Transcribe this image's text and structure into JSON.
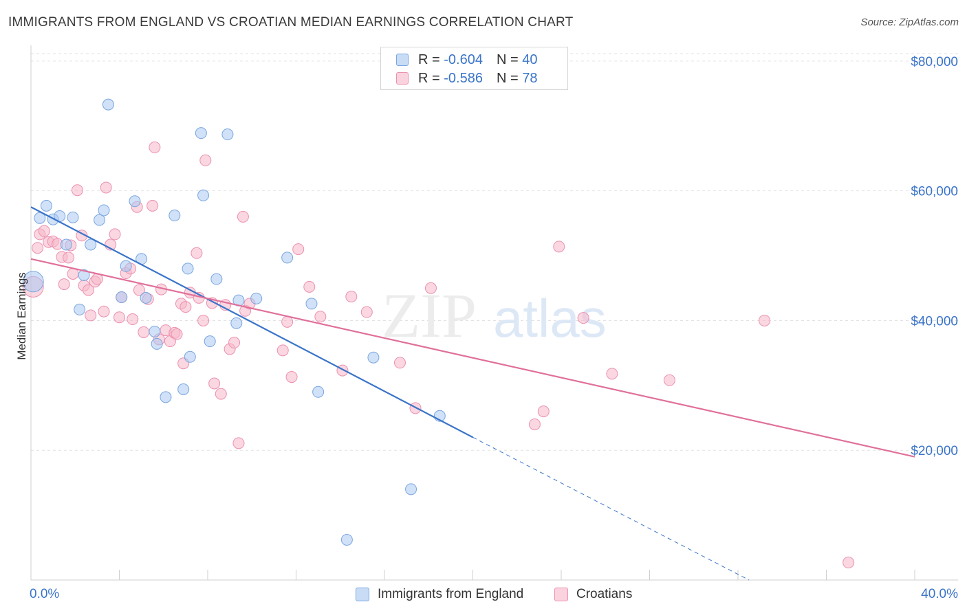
{
  "header": {
    "title": "IMMIGRANTS FROM ENGLAND VS CROATIAN MEDIAN EARNINGS CORRELATION CHART",
    "source": "Source: ZipAtlas.com"
  },
  "watermark": "ZIPatlas",
  "legend": {
    "rows": [
      {
        "r_label": "R = ",
        "r_value": "-0.604",
        "n_label": "N = ",
        "n_value": "40",
        "color": "#a9c8f2"
      },
      {
        "r_label": "R = ",
        "r_value": "-0.586",
        "n_label": "N = ",
        "n_value": "78",
        "color": "#f6b6c9"
      }
    ]
  },
  "bottom_legend": {
    "items": [
      {
        "label": "Immigrants from England",
        "color": "#a9c8f2"
      },
      {
        "label": "Croatians",
        "color": "#f6b6c9"
      }
    ]
  },
  "chart_data": {
    "type": "scatter",
    "title": "IMMIGRANTS FROM ENGLAND VS CROATIAN MEDIAN EARNINGS CORRELATION CHART",
    "xlabel": "",
    "ylabel": "Median Earnings",
    "xlim": [
      0,
      40
    ],
    "ylim": [
      0,
      82000
    ],
    "x_tick_labels": [
      "0.0%",
      "40.0%"
    ],
    "y_tick_labels": [
      "$20,000",
      "$40,000",
      "$60,000",
      "$80,000"
    ],
    "y_ticks": [
      20000,
      40000,
      60000,
      80000
    ],
    "grid": true,
    "legend_position": "top-center",
    "colors": {
      "england": "#3a74c9",
      "croatians": "#e0709a",
      "england_fill": "#a9c8f2",
      "croatians_fill": "#f6b6c9"
    },
    "series": [
      {
        "name": "Immigrants from England",
        "r": -0.604,
        "n": 40,
        "trend": {
          "x": [
            0,
            20
          ],
          "y": [
            57500,
            22000
          ],
          "dashed_to": {
            "x": 32.5,
            "y": 0
          }
        },
        "points": [
          {
            "x": 0.1,
            "y": 46000
          },
          {
            "x": 0.4,
            "y": 55800
          },
          {
            "x": 0.7,
            "y": 57700
          },
          {
            "x": 1.0,
            "y": 55600
          },
          {
            "x": 1.3,
            "y": 56100
          },
          {
            "x": 1.6,
            "y": 51700
          },
          {
            "x": 1.9,
            "y": 55900
          },
          {
            "x": 2.2,
            "y": 41700
          },
          {
            "x": 2.4,
            "y": 47000
          },
          {
            "x": 2.7,
            "y": 51700
          },
          {
            "x": 3.1,
            "y": 55500
          },
          {
            "x": 3.3,
            "y": 57000
          },
          {
            "x": 3.5,
            "y": 73300
          },
          {
            "x": 4.1,
            "y": 43600
          },
          {
            "x": 4.3,
            "y": 48400
          },
          {
            "x": 4.7,
            "y": 58400
          },
          {
            "x": 5.0,
            "y": 49500
          },
          {
            "x": 5.2,
            "y": 43500
          },
          {
            "x": 5.6,
            "y": 38300
          },
          {
            "x": 5.7,
            "y": 36400
          },
          {
            "x": 6.1,
            "y": 28200
          },
          {
            "x": 6.5,
            "y": 56200
          },
          {
            "x": 6.9,
            "y": 29400
          },
          {
            "x": 7.1,
            "y": 48000
          },
          {
            "x": 7.2,
            "y": 34400
          },
          {
            "x": 7.7,
            "y": 68900
          },
          {
            "x": 7.8,
            "y": 59300
          },
          {
            "x": 8.1,
            "y": 36800
          },
          {
            "x": 8.4,
            "y": 46400
          },
          {
            "x": 8.9,
            "y": 68700
          },
          {
            "x": 9.3,
            "y": 39600
          },
          {
            "x": 9.4,
            "y": 43100
          },
          {
            "x": 10.2,
            "y": 43400
          },
          {
            "x": 11.6,
            "y": 49700
          },
          {
            "x": 12.7,
            "y": 42600
          },
          {
            "x": 13.0,
            "y": 29000
          },
          {
            "x": 14.3,
            "y": 6200
          },
          {
            "x": 15.5,
            "y": 34300
          },
          {
            "x": 17.2,
            "y": 14000
          },
          {
            "x": 18.5,
            "y": 25300
          }
        ]
      },
      {
        "name": "Croatians",
        "r": -0.586,
        "n": 78,
        "trend": {
          "x": [
            0,
            40
          ],
          "y": [
            49500,
            19000
          ]
        },
        "points": [
          {
            "x": 0.1,
            "y": 45200
          },
          {
            "x": 0.3,
            "y": 51200
          },
          {
            "x": 0.4,
            "y": 53300
          },
          {
            "x": 0.6,
            "y": 53800
          },
          {
            "x": 0.8,
            "y": 52100
          },
          {
            "x": 1.0,
            "y": 52200
          },
          {
            "x": 1.2,
            "y": 51800
          },
          {
            "x": 1.4,
            "y": 49800
          },
          {
            "x": 1.5,
            "y": 45600
          },
          {
            "x": 1.7,
            "y": 49700
          },
          {
            "x": 1.8,
            "y": 51600
          },
          {
            "x": 1.9,
            "y": 47200
          },
          {
            "x": 2.1,
            "y": 60100
          },
          {
            "x": 2.3,
            "y": 53100
          },
          {
            "x": 2.4,
            "y": 45400
          },
          {
            "x": 2.6,
            "y": 44700
          },
          {
            "x": 2.7,
            "y": 40800
          },
          {
            "x": 2.9,
            "y": 46000
          },
          {
            "x": 3.0,
            "y": 46400
          },
          {
            "x": 3.3,
            "y": 41400
          },
          {
            "x": 3.4,
            "y": 60500
          },
          {
            "x": 3.6,
            "y": 51700
          },
          {
            "x": 3.8,
            "y": 53300
          },
          {
            "x": 4.0,
            "y": 40500
          },
          {
            "x": 4.1,
            "y": 43600
          },
          {
            "x": 4.3,
            "y": 47300
          },
          {
            "x": 4.5,
            "y": 48000
          },
          {
            "x": 4.6,
            "y": 40200
          },
          {
            "x": 4.8,
            "y": 57500
          },
          {
            "x": 4.9,
            "y": 44700
          },
          {
            "x": 5.1,
            "y": 38200
          },
          {
            "x": 5.3,
            "y": 43300
          },
          {
            "x": 5.5,
            "y": 57700
          },
          {
            "x": 5.6,
            "y": 66700
          },
          {
            "x": 5.8,
            "y": 37100
          },
          {
            "x": 5.9,
            "y": 44800
          },
          {
            "x": 6.1,
            "y": 38500
          },
          {
            "x": 6.3,
            "y": 36800
          },
          {
            "x": 6.5,
            "y": 38100
          },
          {
            "x": 6.6,
            "y": 37900
          },
          {
            "x": 6.8,
            "y": 42600
          },
          {
            "x": 6.9,
            "y": 33400
          },
          {
            "x": 7.0,
            "y": 42100
          },
          {
            "x": 7.2,
            "y": 44300
          },
          {
            "x": 7.5,
            "y": 50400
          },
          {
            "x": 7.6,
            "y": 43500
          },
          {
            "x": 7.8,
            "y": 40000
          },
          {
            "x": 7.9,
            "y": 64700
          },
          {
            "x": 8.2,
            "y": 42700
          },
          {
            "x": 8.3,
            "y": 30300
          },
          {
            "x": 8.6,
            "y": 28700
          },
          {
            "x": 8.8,
            "y": 42400
          },
          {
            "x": 9.0,
            "y": 35600
          },
          {
            "x": 9.2,
            "y": 36600
          },
          {
            "x": 9.4,
            "y": 21100
          },
          {
            "x": 9.6,
            "y": 56000
          },
          {
            "x": 9.7,
            "y": 41500
          },
          {
            "x": 9.9,
            "y": 42600
          },
          {
            "x": 11.4,
            "y": 35400
          },
          {
            "x": 11.6,
            "y": 39800
          },
          {
            "x": 11.8,
            "y": 31300
          },
          {
            "x": 12.1,
            "y": 51000
          },
          {
            "x": 12.6,
            "y": 45200
          },
          {
            "x": 13.1,
            "y": 40600
          },
          {
            "x": 14.1,
            "y": 32300
          },
          {
            "x": 14.5,
            "y": 43700
          },
          {
            "x": 15.2,
            "y": 41300
          },
          {
            "x": 16.7,
            "y": 33500
          },
          {
            "x": 17.4,
            "y": 26500
          },
          {
            "x": 18.1,
            "y": 45000
          },
          {
            "x": 22.8,
            "y": 24000
          },
          {
            "x": 23.2,
            "y": 26000
          },
          {
            "x": 23.9,
            "y": 51400
          },
          {
            "x": 25.0,
            "y": 40400
          },
          {
            "x": 26.3,
            "y": 31800
          },
          {
            "x": 28.9,
            "y": 30800
          },
          {
            "x": 33.2,
            "y": 40000
          },
          {
            "x": 37.0,
            "y": 2700
          }
        ]
      }
    ]
  }
}
